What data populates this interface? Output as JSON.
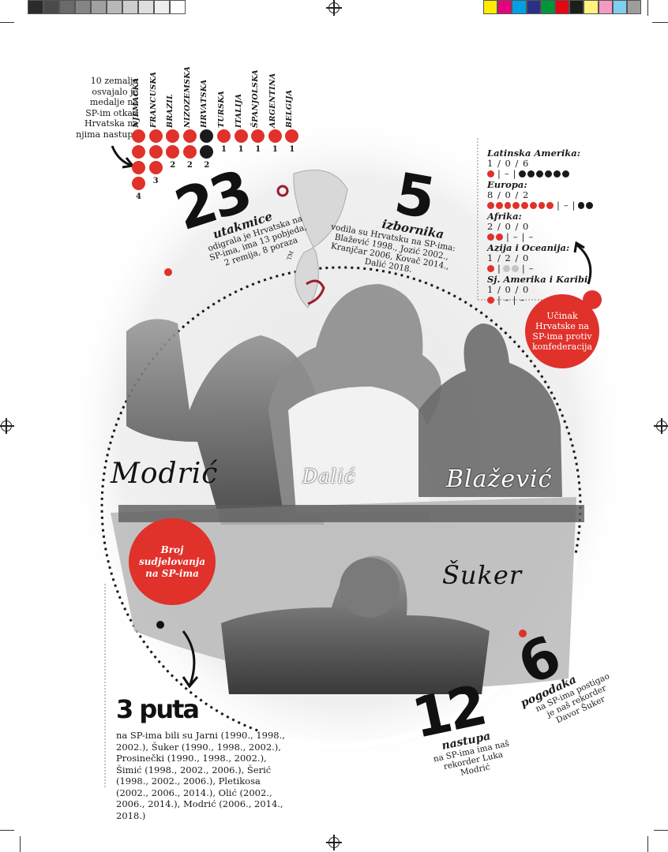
{
  "print_marks": {
    "grey_swatches": [
      "#2b2b2b",
      "#4a4a4a",
      "#6a6a6a",
      "#858585",
      "#a0a0a0",
      "#b8b8b8",
      "#cdcdcd",
      "#dedede",
      "#eeeeee",
      "#ffffff"
    ],
    "color_swatches": [
      "#ffec00",
      "#e6007e",
      "#00a0e3",
      "#2a3185",
      "#00973a",
      "#e30613",
      "#1d1d1b",
      "#fff27f",
      "#f39ac3",
      "#7fcff1",
      "#9d9d9c"
    ]
  },
  "colors": {
    "red": "#e0312b",
    "black": "#1a1a1a",
    "grey": "#c4c4c4"
  },
  "medals": {
    "intro": "10 zemalja osvajalo je medalje na SP-im otkad Hrvatska na njima nastupa",
    "countries": [
      {
        "name": "NJEMAČKA",
        "count": "4",
        "dots": 4,
        "color": "red"
      },
      {
        "name": "FRANCUSKA",
        "count": "3",
        "dots": 3,
        "color": "red"
      },
      {
        "name": "BRAZIL",
        "count": "2",
        "dots": 2,
        "color": "red"
      },
      {
        "name": "NIZOZEMSKA",
        "count": "2",
        "dots": 2,
        "color": "red"
      },
      {
        "name": "HRVATSKA",
        "count": "2",
        "dots": 2,
        "color": "black"
      },
      {
        "name": "TURSKA",
        "count": "1",
        "dots": 1,
        "color": "red"
      },
      {
        "name": "ITALIJA",
        "count": "1",
        "dots": 1,
        "color": "red"
      },
      {
        "name": "ŠPANJOLSKA",
        "count": "1",
        "dots": 1,
        "color": "red"
      },
      {
        "name": "ARGENTINA",
        "count": "1",
        "dots": 1,
        "color": "red"
      },
      {
        "name": "BELGIJA",
        "count": "1",
        "dots": 1,
        "color": "red"
      }
    ]
  },
  "stat_matches": {
    "number": "23",
    "label": "utakmice",
    "text": "odigrala je Hrvatska na SP-ima, ima 13 pobjeda, 2 remija, 8 poraza"
  },
  "stat_coaches": {
    "number": "5",
    "label": "izbornika",
    "text": "vodila su Hrvatsku na SP-ima: Blažević 1998., Jozić 2002., Kranjčar 2006, Kovač 2014., Dalić 2018."
  },
  "logo": {
    "tm": "TM"
  },
  "confederations": {
    "caption": "Učinak Hrvatske na SP-ima protiv konfederacija",
    "items": [
      {
        "name": "Latinska Amerika:",
        "score": "1 / 0 / 6",
        "w": 1,
        "d": 0,
        "l": 6
      },
      {
        "name": "Europa:",
        "score": "8 / 0 / 2",
        "w": 8,
        "d": 0,
        "l": 2
      },
      {
        "name": "Afrika:",
        "score": "2 / 0 / 0",
        "w": 2,
        "d": 0,
        "l": 0
      },
      {
        "name": "Azija i Oceanija:",
        "score": "1 / 2 / 0",
        "w": 1,
        "d": 2,
        "l": 0
      },
      {
        "name": "Sj. Amerika i Karibi:",
        "score": "1 / 0 / 0",
        "w": 1,
        "d": 0,
        "l": 0
      }
    ]
  },
  "players": {
    "modric": "Modrić",
    "dalic": "Dalić",
    "blazevic": "Blažević",
    "suker": "Šuker"
  },
  "participations": {
    "caption": "Broj sudjelovanja na SP-ima",
    "number": "3 puta",
    "text": "na SP-ima bili su Jarni (1990., 1998., 2002.), Šuker (1990., 1998., 2002.), Prosinečki (1990., 1998., 2002.), Šimić (1998., 2002., 2006.), Šerić (1998., 2002., 2006.), Pletikosa (2002., 2006., 2014.), Olić (2002., 2006., 2014.), Modrić (2006., 2014., 2018.)"
  },
  "stat_appearances": {
    "number": "12",
    "label": "nastupa",
    "text": "na SP-ima ima naš rekorder Luka Modrić"
  },
  "stat_goals": {
    "number": "6",
    "label": "pogodaka",
    "text": "na SP-ima postigao je naš rekorder Davor Šuker"
  }
}
